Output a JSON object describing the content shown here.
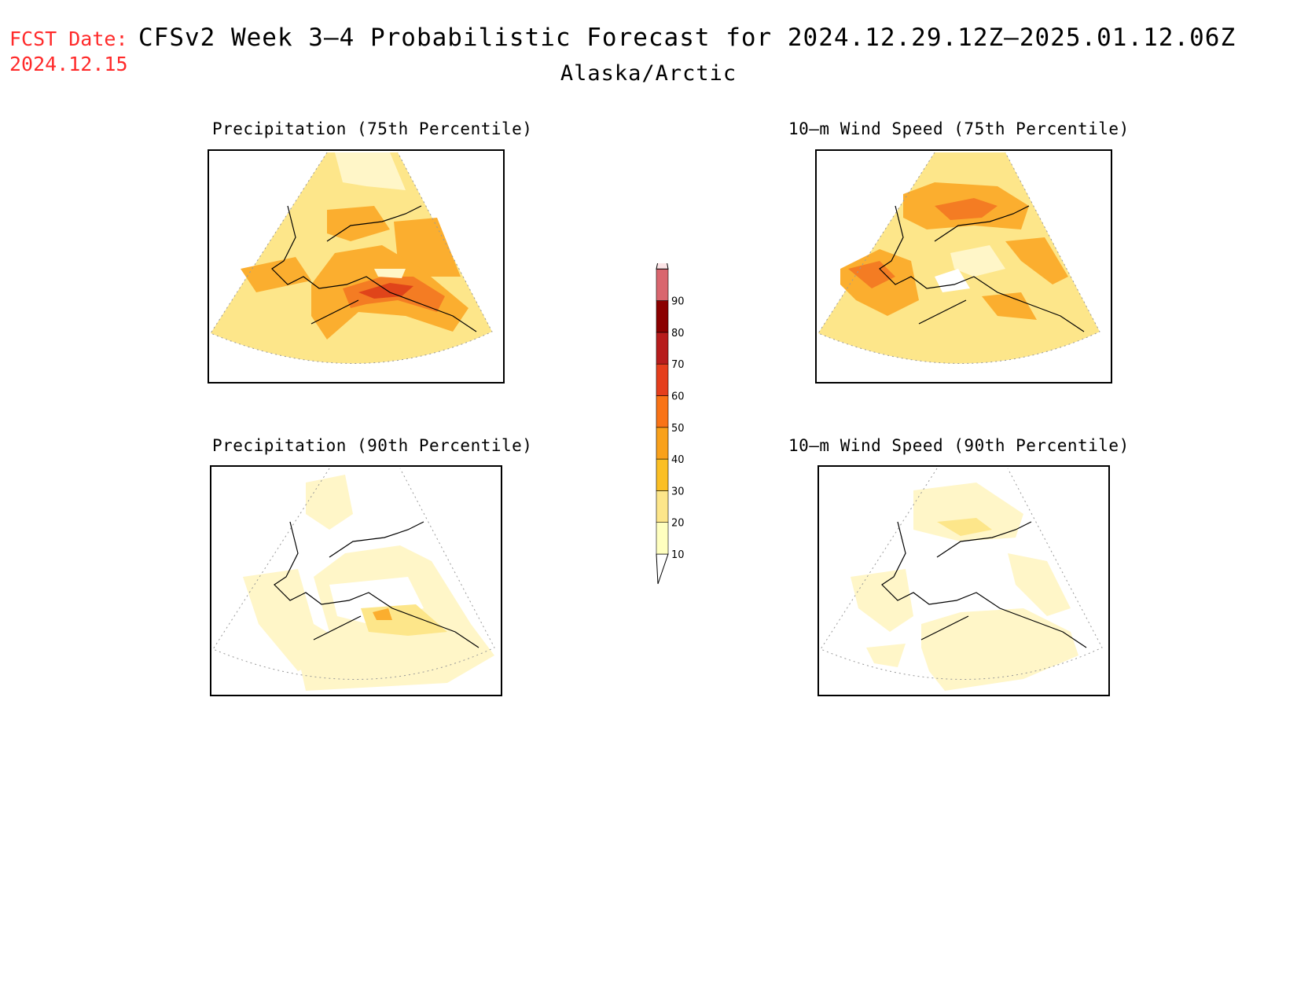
{
  "header": {
    "fcst_label": "FCST Date:",
    "fcst_date": "2024.12.15",
    "title": "CFSv2 Week 3–4 Probabilistic Forecast for 2024.12.29.12Z–2025.01.12.06Z",
    "region": "Alaska/Arctic"
  },
  "panels": [
    {
      "id": "precip75",
      "title": "Precipitation (75th Percentile)"
    },
    {
      "id": "wind75",
      "title": "10–m Wind Speed (75th Percentile)"
    },
    {
      "id": "precip90",
      "title": "Precipitation (90th Percentile)"
    },
    {
      "id": "wind90",
      "title": "10–m Wind Speed (90th Percentile)"
    }
  ],
  "colorbar": {
    "levels": [
      "10",
      "20",
      "30",
      "40",
      "50",
      "60",
      "70",
      "80",
      "90"
    ],
    "colors": [
      "#ffffbf",
      "#fde68a",
      "#fbbf24",
      "#f9a11b",
      "#f97316",
      "#e53e1c",
      "#b71c1c",
      "#8b0000",
      "#d9666e",
      "#f0a5ab",
      "#fce4e6"
    ]
  }
}
